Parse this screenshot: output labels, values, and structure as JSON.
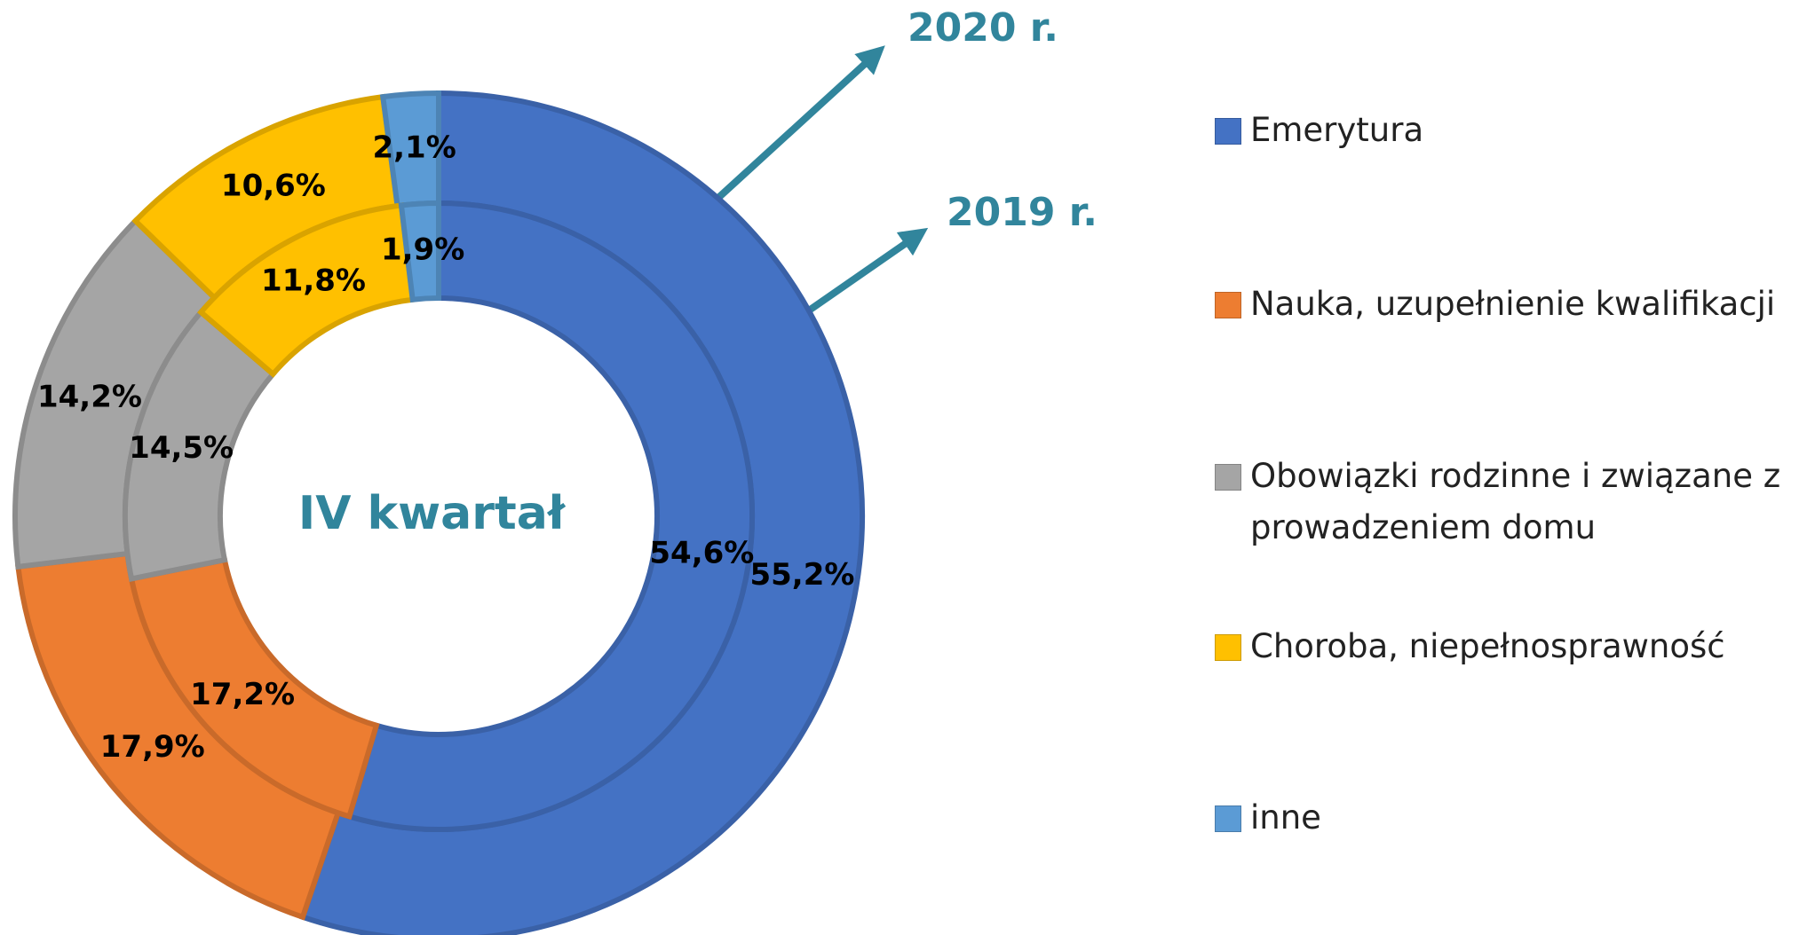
{
  "chart_data": {
    "type": "doughnut",
    "center_label": "IV kwartał",
    "categories": [
      "Emerytura",
      "Nauka, uzupełnienie kwalifikacji",
      "Obowiązki rodzinne i związane z prowadzeniem domu",
      "Choroba, niepełnosprawność",
      "inne"
    ],
    "colors": [
      "#4472c4",
      "#ed7d31",
      "#a5a5a5",
      "#ffc000",
      "#5b9bd5"
    ],
    "series": [
      {
        "name": "2020 r.",
        "values": [
          55.2,
          17.9,
          14.2,
          10.6,
          2.1
        ],
        "value_labels": [
          "55,2%",
          "17,9%",
          "14,2%",
          "10,6%",
          "2,1%"
        ]
      },
      {
        "name": "2019 r.",
        "values": [
          54.6,
          17.2,
          14.5,
          11.8,
          1.9
        ],
        "value_labels": [
          "54,6%",
          "17,2%",
          "14,5%",
          "11,8%",
          "1,9%"
        ]
      }
    ],
    "legend": "right"
  }
}
